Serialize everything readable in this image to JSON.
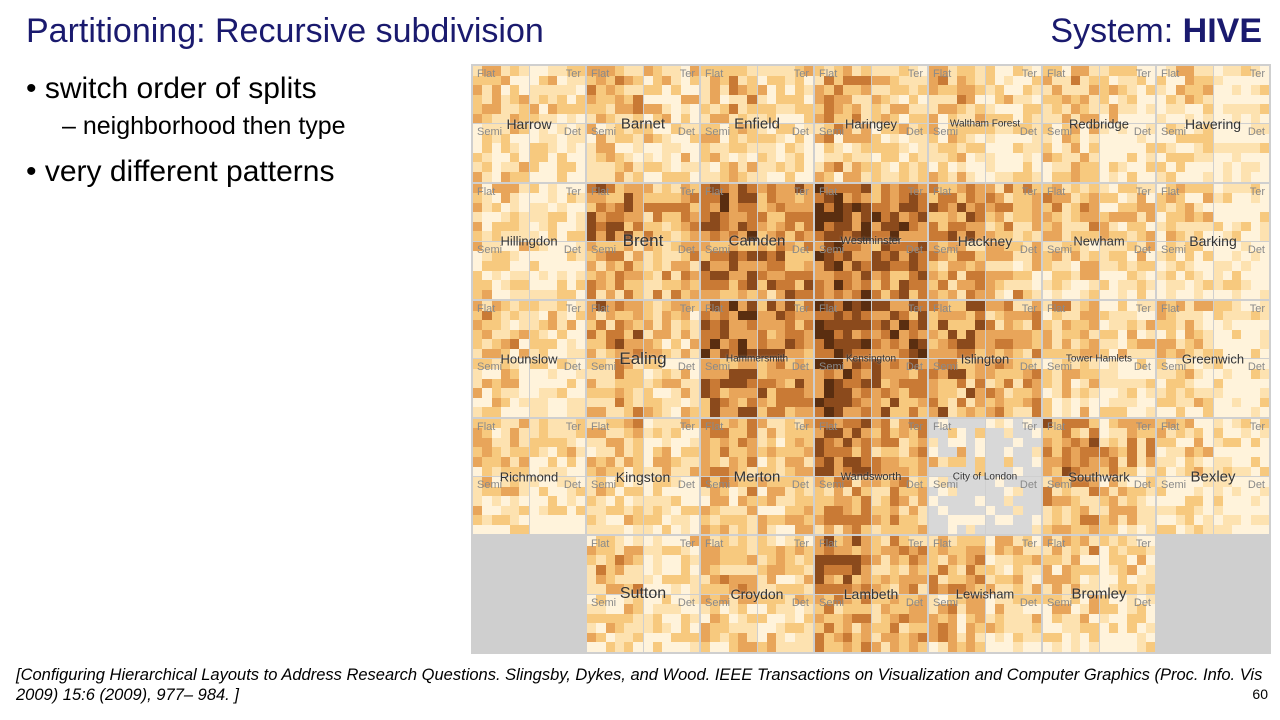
{
  "title_left": "Partitioning: Recursive subdivision",
  "title_right_prefix": "System: ",
  "title_right_bold": "HIVE",
  "bullets": {
    "b1a": "switch order of splits",
    "b2a": "neighborhood then type",
    "b1b": "very different patterns"
  },
  "citation": "[Configuring Hierarchical Layouts to Address Research Questions. Slingsby, Dykes, and Wood. IEEE Transactions on Visualization and Computer Graphics (Proc. Info. Vis 2009) 15:6 (2009), 977– 984. ]",
  "page_number": "60",
  "quad_labels": [
    "Flat",
    "Ter",
    "Semi",
    "Det"
  ],
  "palette": [
    "#fff3db",
    "#fde2b0",
    "#f7c97e",
    "#e8a55a",
    "#c97a35",
    "#8b4a1c",
    "#5a2e10",
    "#d8d8d8"
  ],
  "grid": {
    "cols": 7,
    "rows": 5,
    "cells": [
      {
        "r": 0,
        "c": 0,
        "name": "Harrow",
        "nameSize": 14,
        "intensity": 0.3
      },
      {
        "r": 0,
        "c": 1,
        "name": "Barnet",
        "nameSize": 15,
        "intensity": 0.35
      },
      {
        "r": 0,
        "c": 2,
        "name": "Enfield",
        "nameSize": 15,
        "intensity": 0.32
      },
      {
        "r": 0,
        "c": 3,
        "name": "Haringey",
        "nameSize": 13,
        "intensity": 0.4
      },
      {
        "r": 0,
        "c": 4,
        "name": "Waltham Forest",
        "nameSize": 10,
        "intensity": 0.28
      },
      {
        "r": 0,
        "c": 5,
        "name": "Redbridge",
        "nameSize": 13,
        "intensity": 0.3
      },
      {
        "r": 0,
        "c": 6,
        "name": "Havering",
        "nameSize": 14,
        "intensity": 0.2
      },
      {
        "r": 1,
        "c": 0,
        "name": "Hillingdon",
        "nameSize": 13,
        "intensity": 0.25
      },
      {
        "r": 1,
        "c": 1,
        "name": "Brent",
        "nameSize": 17,
        "intensity": 0.55
      },
      {
        "r": 1,
        "c": 2,
        "name": "Camden",
        "nameSize": 15,
        "intensity": 0.7
      },
      {
        "r": 1,
        "c": 3,
        "name": "Westminster",
        "nameSize": 11,
        "intensity": 0.78
      },
      {
        "r": 1,
        "c": 4,
        "name": "Hackney",
        "nameSize": 14,
        "intensity": 0.5
      },
      {
        "r": 1,
        "c": 5,
        "name": "Newham",
        "nameSize": 13,
        "intensity": 0.35
      },
      {
        "r": 1,
        "c": 6,
        "name": "Barking",
        "nameSize": 14,
        "intensity": 0.22
      },
      {
        "r": 2,
        "c": 0,
        "name": "Hounslow",
        "nameSize": 13,
        "intensity": 0.3
      },
      {
        "r": 2,
        "c": 1,
        "name": "Ealing",
        "nameSize": 17,
        "intensity": 0.45
      },
      {
        "r": 2,
        "c": 2,
        "name": "Hammersmith",
        "nameSize": 10,
        "intensity": 0.72
      },
      {
        "r": 2,
        "c": 3,
        "name": "Kensington",
        "nameSize": 10,
        "intensity": 0.8
      },
      {
        "r": 2,
        "c": 4,
        "name": "Islington",
        "nameSize": 13,
        "intensity": 0.58
      },
      {
        "r": 2,
        "c": 5,
        "name": "Tower Hamlets",
        "nameSize": 10,
        "intensity": 0.3
      },
      {
        "r": 2,
        "c": 6,
        "name": "Greenwich",
        "nameSize": 13,
        "intensity": 0.25
      },
      {
        "r": 3,
        "c": 0,
        "name": "Richmond",
        "nameSize": 13,
        "intensity": 0.28
      },
      {
        "r": 3,
        "c": 1,
        "name": "Kingston",
        "nameSize": 14,
        "intensity": 0.32
      },
      {
        "r": 3,
        "c": 2,
        "name": "Merton",
        "nameSize": 15,
        "intensity": 0.42
      },
      {
        "r": 3,
        "c": 3,
        "name": "Wandsworth",
        "nameSize": 11,
        "intensity": 0.58
      },
      {
        "r": 3,
        "c": 4,
        "name": "City of London",
        "nameSize": 10,
        "intensity": 0.15,
        "sparse": true
      },
      {
        "r": 3,
        "c": 5,
        "name": "Southwark",
        "nameSize": 13,
        "intensity": 0.48
      },
      {
        "r": 3,
        "c": 6,
        "name": "Bexley",
        "nameSize": 15,
        "intensity": 0.22
      },
      {
        "r": 4,
        "c": 0,
        "empty": true
      },
      {
        "r": 4,
        "c": 1,
        "name": "Sutton",
        "nameSize": 16,
        "intensity": 0.3
      },
      {
        "r": 4,
        "c": 2,
        "name": "Croydon",
        "nameSize": 14,
        "intensity": 0.38
      },
      {
        "r": 4,
        "c": 3,
        "name": "Lambeth",
        "nameSize": 14,
        "intensity": 0.55
      },
      {
        "r": 4,
        "c": 4,
        "name": "Lewisham",
        "nameSize": 13,
        "intensity": 0.4
      },
      {
        "r": 4,
        "c": 5,
        "name": "Bromley",
        "nameSize": 15,
        "intensity": 0.28
      },
      {
        "r": 4,
        "c": 6,
        "empty": true
      }
    ]
  }
}
